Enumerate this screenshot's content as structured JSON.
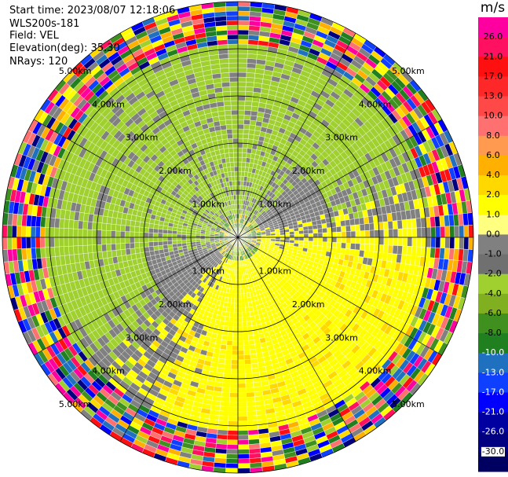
{
  "header": {
    "start_time": "Start time: 2023/08/07 12:18:06",
    "instrument": "WLS200s-181",
    "field": "Field: VEL",
    "elevation": "Elevation(deg): 35.30",
    "nrays": "NRays: 120"
  },
  "chart_data": {
    "type": "ppi-radar",
    "field": "VEL",
    "units": "m/s",
    "nrays": 120,
    "range_rings_km": [
      1,
      2,
      3,
      4,
      5
    ],
    "range_ring_labels": [
      "1.00km",
      "2.00km",
      "3.00km",
      "4.00km",
      "5.00km"
    ],
    "colorbar": {
      "title": "m/s",
      "ticks": [
        "26.0",
        "21.0",
        "17.0",
        "13.0",
        "10.0",
        "8.0",
        "6.0",
        "4.0",
        "2.0",
        "1.0",
        "0.0",
        "-1.0",
        "-2.0",
        "-4.0",
        "-6.0",
        "-8.0",
        "-10.0",
        "-13.0",
        "-17.0",
        "-21.0",
        "-26.0",
        "-30.0"
      ],
      "colors": [
        "#ff00a0",
        "#ff1060",
        "#ff1010",
        "#ff2828",
        "#ff4848",
        "#ff7070",
        "#ff9a50",
        "#ffb000",
        "#ffd800",
        "#ffff00",
        "#ffff80",
        "#808080",
        "#707070",
        "#a0d030",
        "#80b020",
        "#409020",
        "#208020",
        "#2070c0",
        "#1040ff",
        "#0000ff",
        "#0000a0",
        "#000080",
        "#000060"
      ]
    },
    "pattern": {
      "clean_region": "yellow positive velocities south-east, green/gray negative north-west, noisy speckle beyond ~4 km"
    }
  }
}
